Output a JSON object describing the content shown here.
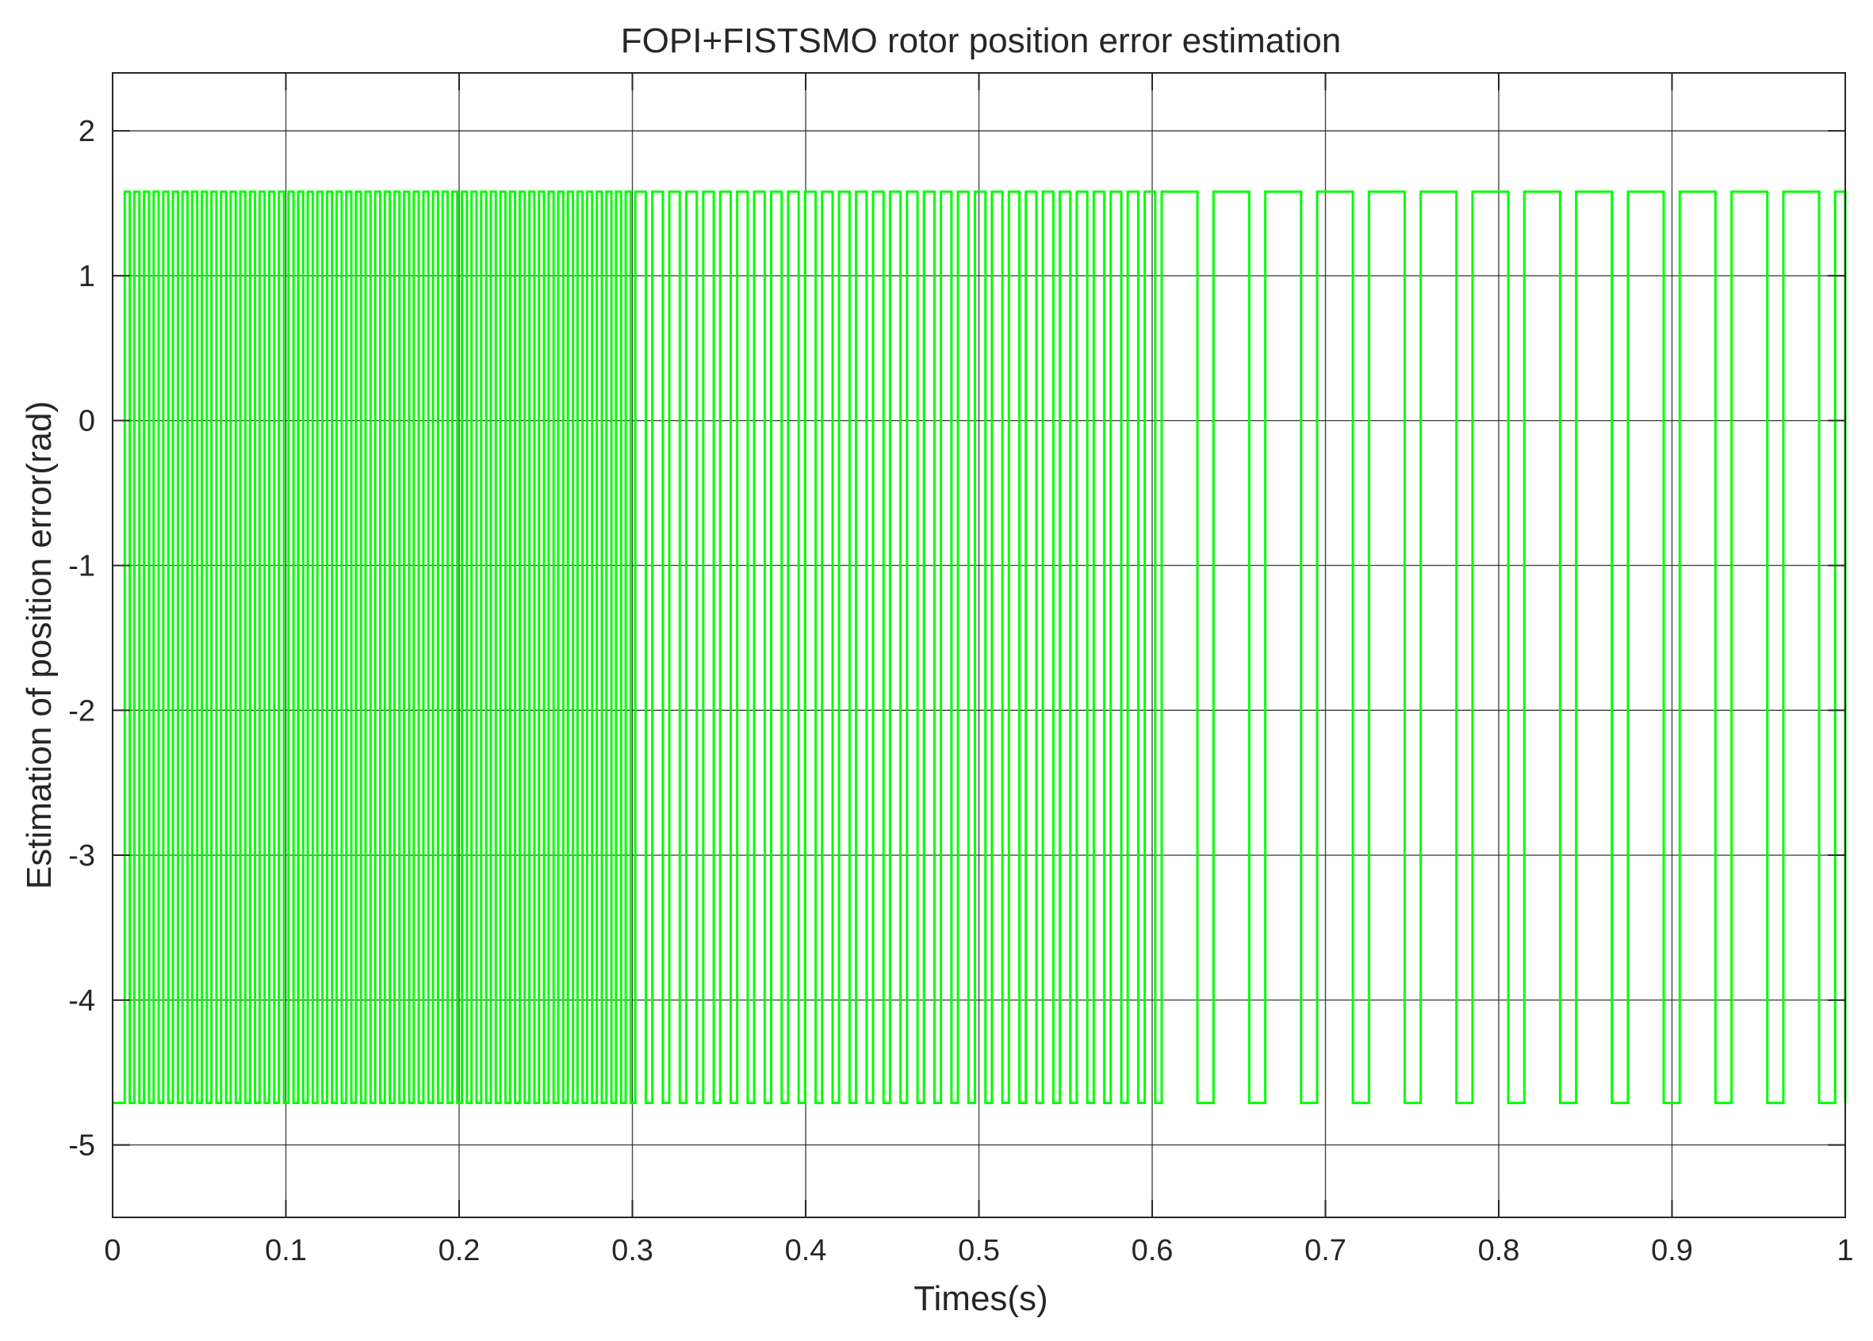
{
  "chart_data": {
    "type": "line",
    "title": "FOPI+FISTSMO rotor position error estimation",
    "xlabel": "Times(s)",
    "ylabel": "Estimation of position error(rad)",
    "xlim": [
      0,
      1
    ],
    "ylim": [
      -5.5,
      2.4
    ],
    "xticks": [
      0,
      0.1,
      0.2,
      0.3,
      0.4,
      0.5,
      0.6,
      0.7,
      0.8,
      0.9,
      1
    ],
    "xtick_labels": [
      "0",
      "0.1",
      "0.2",
      "0.3",
      "0.4",
      "0.5",
      "0.6",
      "0.7",
      "0.8",
      "0.9",
      "1"
    ],
    "yticks": [
      2,
      1,
      0,
      -1,
      -2,
      -3,
      -4,
      -5
    ],
    "ytick_labels": [
      "2",
      "1",
      "0",
      "-1",
      "-2",
      "-3",
      "-4",
      "-5"
    ],
    "grid": true,
    "series": [
      {
        "color": "#00ff00",
        "style": "square-wave",
        "high_value": 1.58,
        "low_value": -4.71,
        "segments": [
          {
            "t_start": 0.0,
            "t_end": 0.3,
            "period": 0.00556,
            "duty_high": 0.52
          },
          {
            "t_start": 0.3,
            "t_end": 0.6,
            "period": 0.0098,
            "duty_high": 0.62
          },
          {
            "t_start": 0.6,
            "t_end": 1.0,
            "period": 0.0299,
            "duty_high": 0.69
          }
        ],
        "start_value": -4.71,
        "first_rise_t": 0.007,
        "end_value": -4.71
      }
    ]
  }
}
